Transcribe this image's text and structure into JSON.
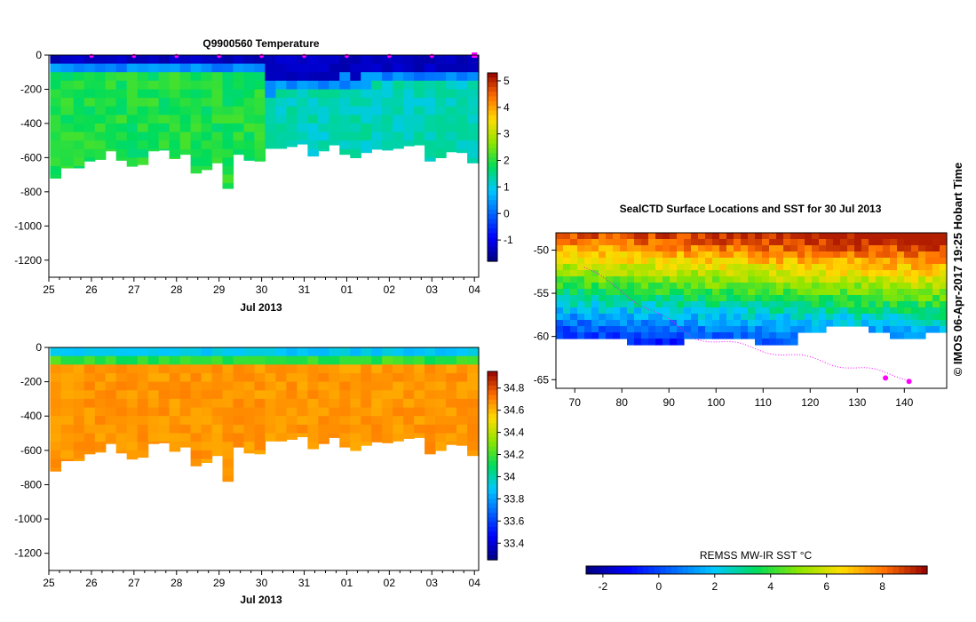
{
  "chart_data": [
    {
      "id": "temperature-section",
      "type": "heatmap",
      "title": "Q9900560  Temperature",
      "xlabel": "Jul 2013",
      "ylabel": "",
      "x_tick_labels": [
        "25",
        "26",
        "27",
        "28",
        "29",
        "30",
        "31",
        "01",
        "02",
        "03",
        "04"
      ],
      "x_range_days": [
        25,
        35.1
      ],
      "y_ticks": [
        0,
        -200,
        -400,
        -600,
        -800,
        -1000,
        -1200
      ],
      "ylim": [
        -1300,
        0
      ],
      "profile_day_positions": [
        25.05,
        25.3,
        25.6,
        25.85,
        26.1,
        26.35,
        26.6,
        26.85,
        27.1,
        27.35,
        27.6,
        27.85,
        28.1,
        28.35,
        28.6,
        28.85,
        29.1,
        29.35,
        29.6,
        29.85,
        30.1,
        30.35,
        30.6,
        30.85,
        31.1,
        31.35,
        31.6,
        31.85,
        32.1,
        32.35,
        32.6,
        32.85,
        33.1,
        33.35,
        33.6,
        33.85,
        34.1,
        34.35,
        34.6,
        34.85
      ],
      "profile_max_depth": [
        -720,
        -660,
        -660,
        -620,
        -610,
        -560,
        -615,
        -650,
        -640,
        -560,
        -555,
        -605,
        -580,
        -690,
        -670,
        -630,
        -780,
        -580,
        -615,
        -620,
        -545,
        -545,
        -535,
        -520,
        -590,
        -560,
        -525,
        -580,
        -600,
        -570,
        -550,
        -555,
        -545,
        -530,
        -525,
        -620,
        -600,
        -565,
        -570,
        -630
      ],
      "surface_cold_layer_depth": [
        -40,
        -40,
        -40,
        -40,
        -40,
        -40,
        -40,
        -40,
        -40,
        -40,
        -40,
        -40,
        -40,
        -40,
        -40,
        -40,
        -40,
        -40,
        -40,
        -40,
        -150,
        -140,
        -130,
        -120,
        -130,
        -120,
        -110,
        -100,
        -110,
        -100,
        -90,
        -90,
        -80,
        -90,
        -80,
        -80,
        -70,
        -70,
        -60,
        -60
      ],
      "colorbar": {
        "min": -1.8,
        "max": 5.3,
        "tick_labels": [
          "5",
          "4",
          "3",
          "2",
          "1",
          "0",
          "-1"
        ]
      },
      "marker_color": "#ff00ff"
    },
    {
      "id": "salinity-section",
      "type": "heatmap",
      "title": "",
      "xlabel": "Jul 2013",
      "x_tick_labels": [
        "25",
        "26",
        "27",
        "28",
        "29",
        "30",
        "31",
        "01",
        "02",
        "03",
        "04"
      ],
      "y_ticks": [
        0,
        -200,
        -400,
        -600,
        -800,
        -1000,
        -1200
      ],
      "ylim": [
        -1300,
        0
      ],
      "colorbar": {
        "min": 33.25,
        "max": 34.95,
        "tick_labels": [
          "34.8",
          "34.6",
          "34.4",
          "34.2",
          "34",
          "33.8",
          "33.6",
          "33.4"
        ]
      }
    },
    {
      "id": "sst-map",
      "type": "heatmap",
      "title": "SealCTD Surface Locations and SST for 30 Jul 2013",
      "x_tick_labels": [
        "70",
        "80",
        "90",
        "100",
        "110",
        "120",
        "130",
        "140"
      ],
      "xlim": [
        66,
        149
      ],
      "y_tick_labels": [
        "-50",
        "-55",
        "-60",
        "-65"
      ],
      "ylim": [
        -66,
        -48
      ],
      "colorbar": {
        "title": "REMSS MW-IR SST °C",
        "min": -2.6,
        "max": 9.6,
        "tick_labels": [
          "-2",
          "0",
          "2",
          "4",
          "6",
          "8"
        ]
      },
      "track_color": "#ff00ff"
    }
  ],
  "side_label": "© IMOS 06-Apr-2017 19:25 Hobart Time"
}
